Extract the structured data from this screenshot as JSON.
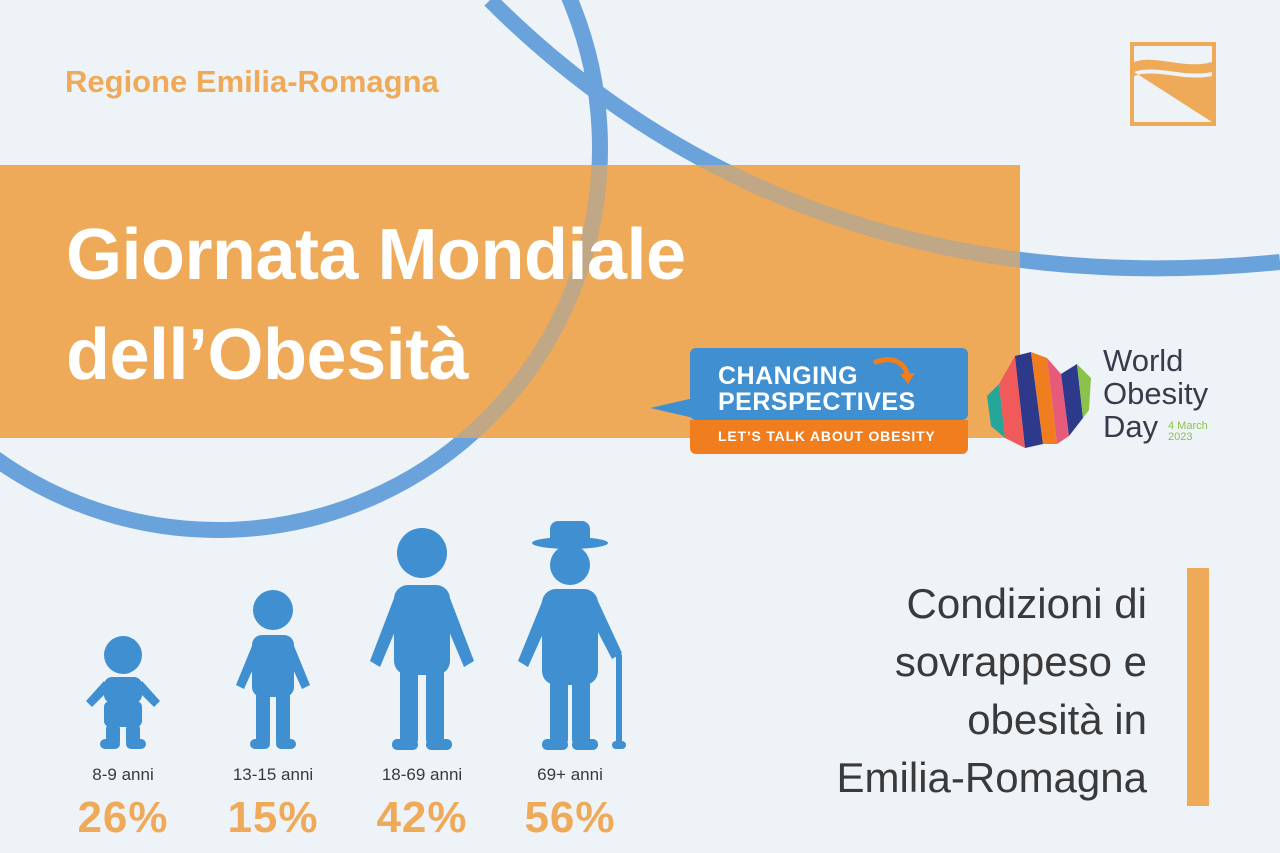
{
  "header": {
    "region": "Regione Emilia-Romagna",
    "title_line1": "Giornata Mondiale",
    "title_line2": "dell’Obesità"
  },
  "campaign": {
    "line1": "CHANGING",
    "line2": "PERSPECTIVES",
    "tagline": "LET’S TALK ABOUT OBESITY"
  },
  "world_obesity_day": {
    "line1": "World",
    "line2": "Obesity",
    "line3": "Day",
    "date_line1": "4 March",
    "date_line2": "2023"
  },
  "age_groups": [
    {
      "label": "8-9 anni",
      "value": "26%",
      "icon": "baby-figure-icon"
    },
    {
      "label": "13-15 anni",
      "value": "15%",
      "icon": "child-figure-icon"
    },
    {
      "label": "18-69 anni",
      "value": "42%",
      "icon": "adult-figure-icon"
    },
    {
      "label": "69+ anni",
      "value": "56%",
      "icon": "elderly-figure-icon"
    }
  ],
  "conditions": {
    "line1": "Condizioni di",
    "line2": "sovrappeso e",
    "line3": "obesità in",
    "line4": "Emilia-Romagna"
  },
  "colors": {
    "orange": "#eeaa58",
    "blue": "#3f8fd1",
    "ring": "#6aa3dc",
    "background": "#eef3f8",
    "text": "#3a3a3a"
  }
}
